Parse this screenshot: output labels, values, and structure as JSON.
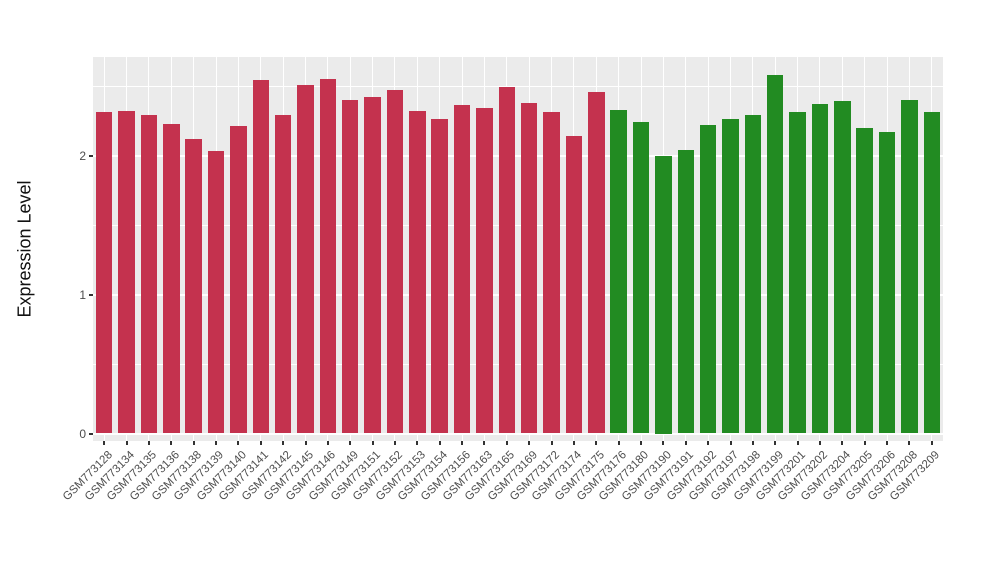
{
  "chart_data": {
    "type": "bar",
    "title": "",
    "xlabel": "",
    "ylabel": "Expression Level",
    "ylim": [
      0,
      2.7
    ],
    "yticks": [
      0,
      1,
      2
    ],
    "ytick_labels": [
      "0",
      "1",
      "2"
    ],
    "grid": "on",
    "legend": "none",
    "panel_bg": "#EBEBEB",
    "figure_bg": "#FFFFFF",
    "grid_color": "#FFFFFF",
    "axis_text_color": "#4D4D4D",
    "group_colors": {
      "red": "#C4324E",
      "green": "#228B22"
    },
    "categories": [
      "GSM773128",
      "GSM773134",
      "GSM773135",
      "GSM773136",
      "GSM773138",
      "GSM773139",
      "GSM773140",
      "GSM773141",
      "GSM773142",
      "GSM773145",
      "GSM773146",
      "GSM773149",
      "GSM773151",
      "GSM773152",
      "GSM773153",
      "GSM773154",
      "GSM773156",
      "GSM773163",
      "GSM773165",
      "GSM773169",
      "GSM773172",
      "GSM773174",
      "GSM773175",
      "GSM773176",
      "GSM773180",
      "GSM773190",
      "GSM773191",
      "GSM773192",
      "GSM773197",
      "GSM773198",
      "GSM773199",
      "GSM773201",
      "GSM773202",
      "GSM773204",
      "GSM773205",
      "GSM773206",
      "GSM773208",
      "GSM773209"
    ],
    "values": [
      2.31,
      2.32,
      2.29,
      2.23,
      2.12,
      2.03,
      2.21,
      2.54,
      2.29,
      2.51,
      2.55,
      2.4,
      2.42,
      2.47,
      2.32,
      2.26,
      2.36,
      2.34,
      2.49,
      2.38,
      2.31,
      2.14,
      2.46,
      2.33,
      2.24,
      2.0,
      2.04,
      2.22,
      2.26,
      2.29,
      2.58,
      2.31,
      2.37,
      2.39,
      2.2,
      2.17,
      2.4,
      2.31
    ],
    "bar_groups": [
      "red",
      "red",
      "red",
      "red",
      "red",
      "red",
      "red",
      "red",
      "red",
      "red",
      "red",
      "red",
      "red",
      "red",
      "red",
      "red",
      "red",
      "red",
      "red",
      "red",
      "red",
      "red",
      "red",
      "green",
      "green",
      "green",
      "green",
      "green",
      "green",
      "green",
      "green",
      "green",
      "green",
      "green",
      "green",
      "green",
      "green",
      "green"
    ]
  }
}
